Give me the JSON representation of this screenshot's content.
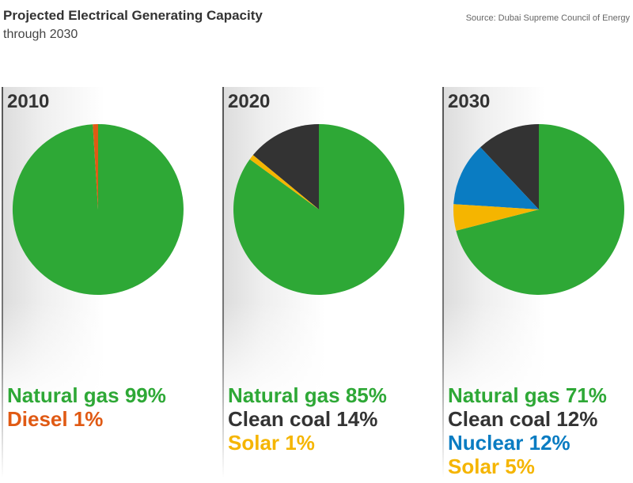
{
  "title": "Projected Electrical Generating Capacity",
  "subtitle": "through 2030",
  "source": "Source: Dubai Supreme Council of Energy",
  "colors": {
    "Natural gas": "#2ea836",
    "Diesel": "#e05a14",
    "Clean coal": "#333333",
    "Nuclear": "#0a7cc2",
    "Solar": "#f5b500"
  },
  "chart_data": [
    {
      "type": "pie",
      "title": "2010",
      "slices": [
        {
          "label": "Natural gas",
          "value": 99,
          "text": "Natural gas 99%"
        },
        {
          "label": "Diesel",
          "value": 1,
          "text": "Diesel 1%"
        }
      ]
    },
    {
      "type": "pie",
      "title": "2020",
      "slices": [
        {
          "label": "Natural gas",
          "value": 85,
          "text": "Natural gas 85%"
        },
        {
          "label": "Clean coal",
          "value": 14,
          "text": "Clean coal 14%"
        },
        {
          "label": "Solar",
          "value": 1,
          "text": "Solar 1%"
        }
      ]
    },
    {
      "type": "pie",
      "title": "2030",
      "slices": [
        {
          "label": "Natural gas",
          "value": 71,
          "text": "Natural gas 71%"
        },
        {
          "label": "Clean coal",
          "value": 12,
          "text": "Clean coal 12%"
        },
        {
          "label": "Nuclear",
          "value": 12,
          "text": "Nuclear 12%"
        },
        {
          "label": "Solar",
          "value": 5,
          "text": "Solar 5%"
        }
      ]
    }
  ]
}
